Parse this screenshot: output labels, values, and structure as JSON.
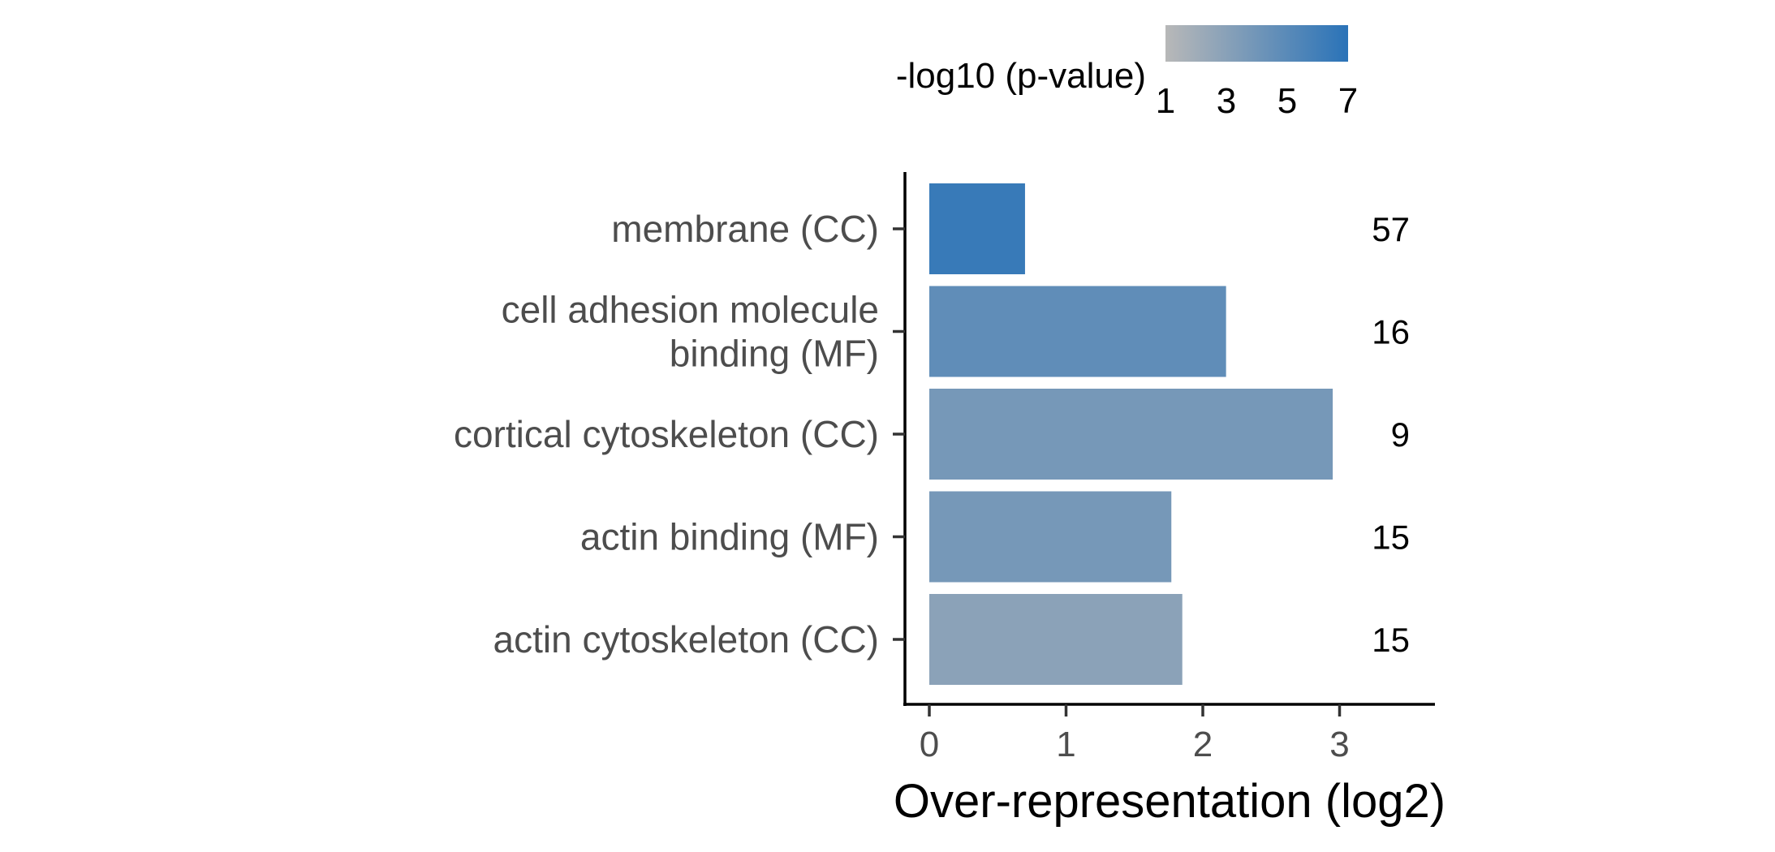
{
  "chart_data": {
    "type": "bar",
    "orientation": "horizontal",
    "categories": [
      [
        "membrane (CC)"
      ],
      [
        "cell adhesion molecule",
        "binding (MF)"
      ],
      [
        "cortical cytoskeleton (CC)"
      ],
      [
        "actin binding (MF)"
      ],
      [
        "actin cytoskeleton (CC)"
      ]
    ],
    "values": [
      0.7,
      2.17,
      2.95,
      1.77,
      1.85
    ],
    "counts": [
      "57",
      "16",
      "9",
      "15",
      "15"
    ],
    "neg_log10_pvalue": [
      6.4,
      4.7,
      3.8,
      3.8,
      2.9
    ],
    "xlabel": "Over-representation (log2)",
    "xlim": [
      0,
      3.5
    ],
    "xticks": [
      "0",
      "1",
      "2",
      "3"
    ],
    "grid": false,
    "legend": {
      "title": "-log10 (p-value)",
      "placement": "top",
      "ticks": [
        "1",
        "3",
        "5",
        "7"
      ],
      "range": [
        1,
        7
      ],
      "color_low": "#b8b8b8",
      "color_high": "#2a73b8"
    }
  }
}
